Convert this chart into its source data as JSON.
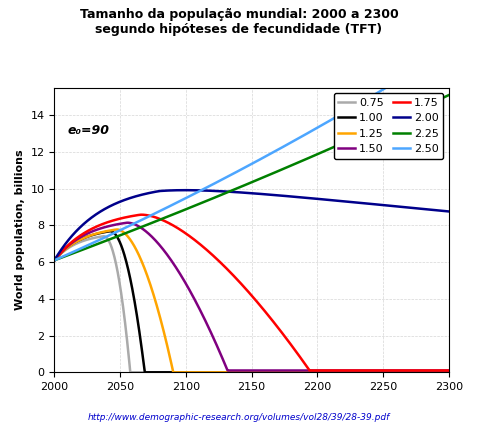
{
  "title": "Tamanho da população mundial: 2000 a 2300\nsegundo hipóteses de fecundidade (TFT)",
  "ylabel": "World population, billions",
  "xlabel": "",
  "url": "http://www.demographic-research.org/volumes/vol28/39/28-39.pdf",
  "annotation": "e₀=90",
  "x_start": 2000,
  "x_end": 2300,
  "ylim": [
    0.0,
    15.5
  ],
  "yticks": [
    0.0,
    2.0,
    4.0,
    6.0,
    8.0,
    10.0,
    12.0,
    14.0
  ],
  "xticks": [
    2000,
    2050,
    2100,
    2150,
    2200,
    2250,
    2300
  ],
  "series": [
    {
      "label": "0.75",
      "color": "#aaaaaa",
      "tfr": 0.75
    },
    {
      "label": "1.00",
      "color": "#000000",
      "tfr": 1.0
    },
    {
      "label": "1.25",
      "color": "#ffa500",
      "tfr": 1.25
    },
    {
      "label": "1.50",
      "color": "#800080",
      "tfr": 1.5
    },
    {
      "label": "1.75",
      "color": "#ff0000",
      "tfr": 1.75
    },
    {
      "label": "2.00",
      "color": "#00008b",
      "tfr": 2.0
    },
    {
      "label": "2.25",
      "color": "#008000",
      "tfr": 2.25
    },
    {
      "label": "2.50",
      "color": "#4da6ff",
      "tfr": 2.5
    }
  ],
  "background_color": "#ffffff",
  "grid_color": "#cccccc"
}
